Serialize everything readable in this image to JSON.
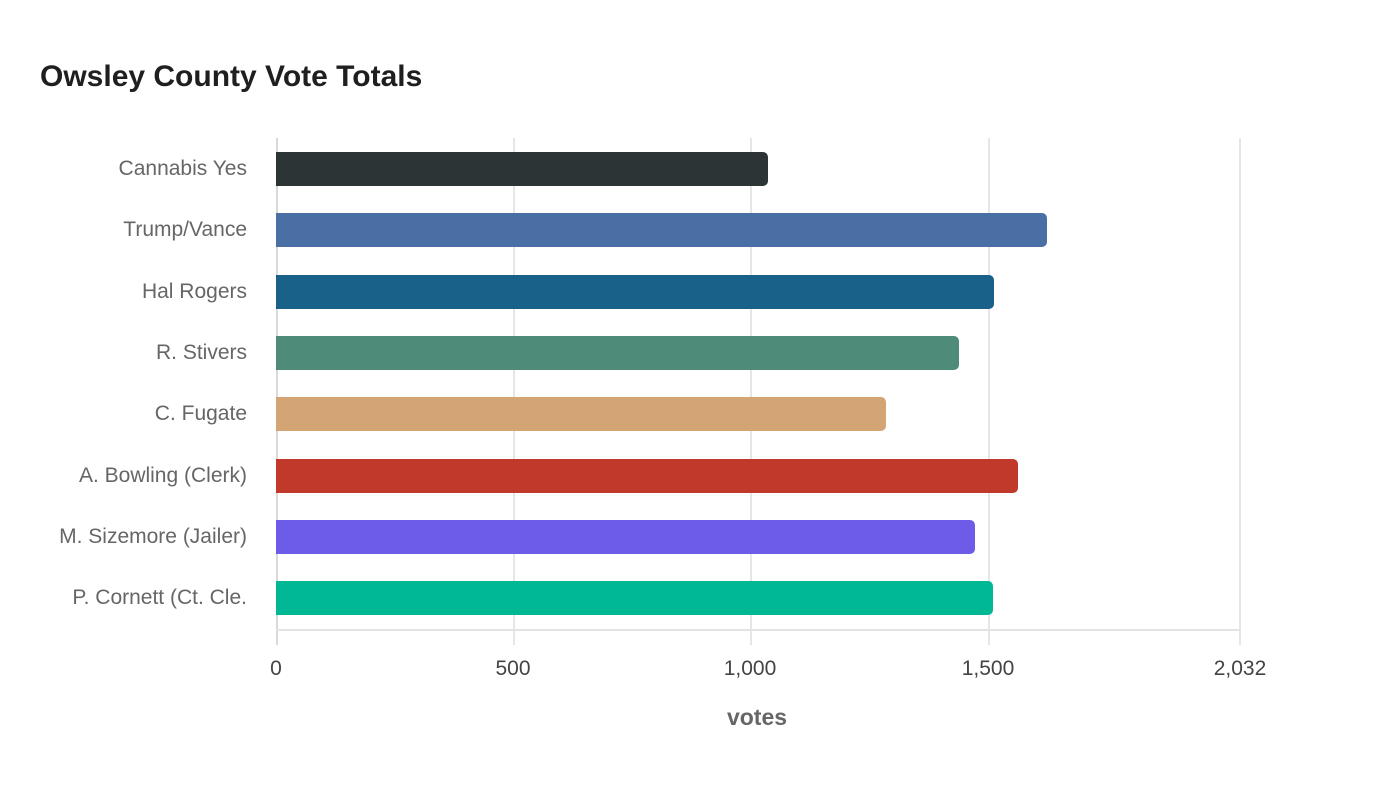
{
  "chart_data": {
    "type": "bar",
    "orientation": "horizontal",
    "title": "Owsley County Vote Totals",
    "xlabel": "votes",
    "ylabel": "",
    "xlim": [
      0,
      2032
    ],
    "x_ticks": [
      "0",
      "500",
      "1,000",
      "1,500",
      "2,032"
    ],
    "grid": true,
    "legend": null,
    "categories": [
      "Cannabis Yes",
      "Trump/Vance",
      "Hal Rogers",
      "R. Stivers",
      "C. Fugate",
      "A. Bowling (Clerk)",
      "M. Sizemore (Jailer)",
      "P. Cornett (Ct. Cle."
    ],
    "values": [
      1037,
      1625,
      1513,
      1439,
      1286,
      1564,
      1473,
      1511
    ],
    "colors": [
      "#2d3436",
      "#4a6fa5",
      "#1a6189",
      "#4e8b78",
      "#d4a574",
      "#c0392b",
      "#6c5ce7",
      "#00b894"
    ]
  }
}
